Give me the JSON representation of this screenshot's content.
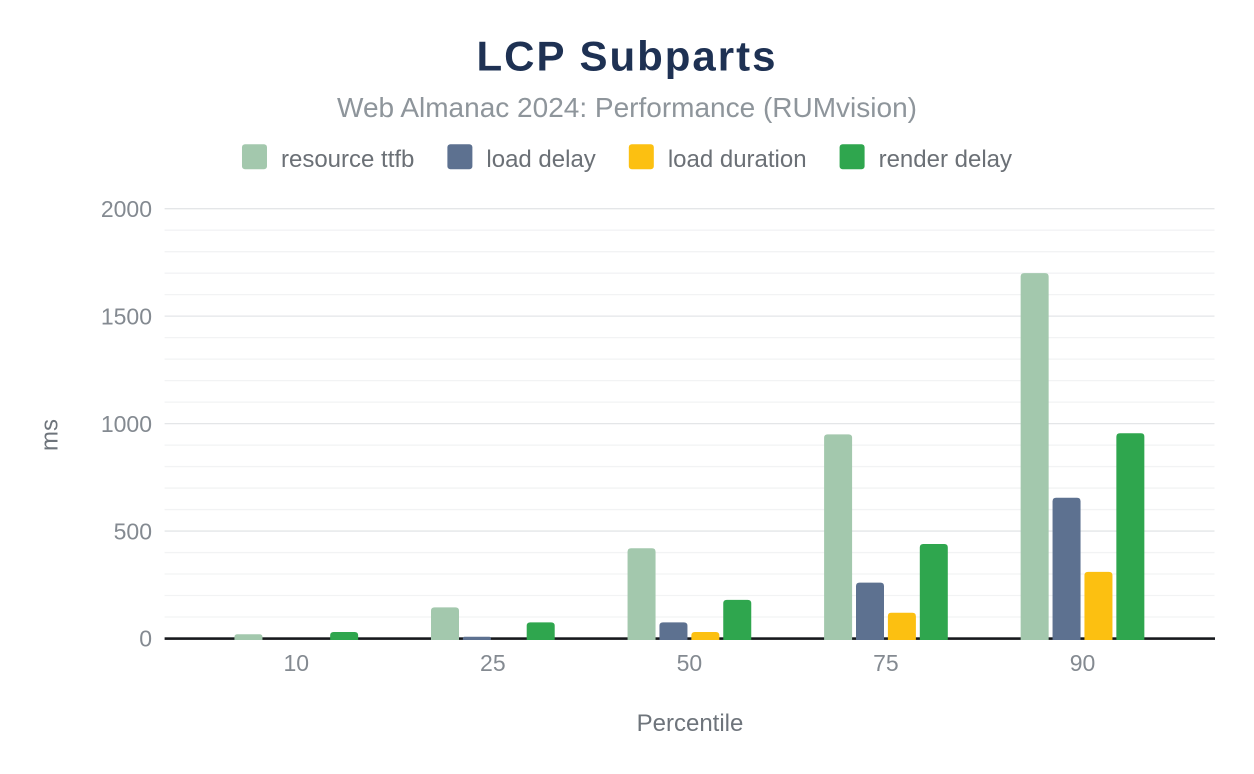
{
  "chart_data": {
    "type": "bar",
    "title": "LCP Subparts",
    "subtitle": "Web Almanac 2024: Performance (RUMvision)",
    "xlabel": "Percentile",
    "ylabel": "ms",
    "categories": [
      "10",
      "25",
      "50",
      "75",
      "90"
    ],
    "series": [
      {
        "name": "resource ttfb",
        "color": "#a3c8ad",
        "values": [
          20,
          145,
          420,
          950,
          1700
        ]
      },
      {
        "name": "load delay",
        "color": "#5d7190",
        "values": [
          0,
          8,
          75,
          260,
          655
        ]
      },
      {
        "name": "load duration",
        "color": "#fcc011",
        "values": [
          0,
          0,
          30,
          120,
          310
        ]
      },
      {
        "name": "render delay",
        "color": "#2fa64e",
        "values": [
          30,
          75,
          180,
          440,
          955
        ]
      }
    ],
    "ylim": [
      0,
      2000
    ],
    "yticks": [
      0,
      500,
      1000,
      1500,
      2000
    ],
    "y_minor_step": 100,
    "grid": "on",
    "legend_position": "top"
  },
  "colors": {
    "background": "#ffffff",
    "title": "#1e3153",
    "subtitle": "#8e959b",
    "legend_text": "#6b7076",
    "tick_label": "#848a91",
    "axis_title": "#6e747b",
    "axis_line": "#17191d",
    "grid_major": "#e4e6e8",
    "grid_minor": "#f2f3f4"
  }
}
